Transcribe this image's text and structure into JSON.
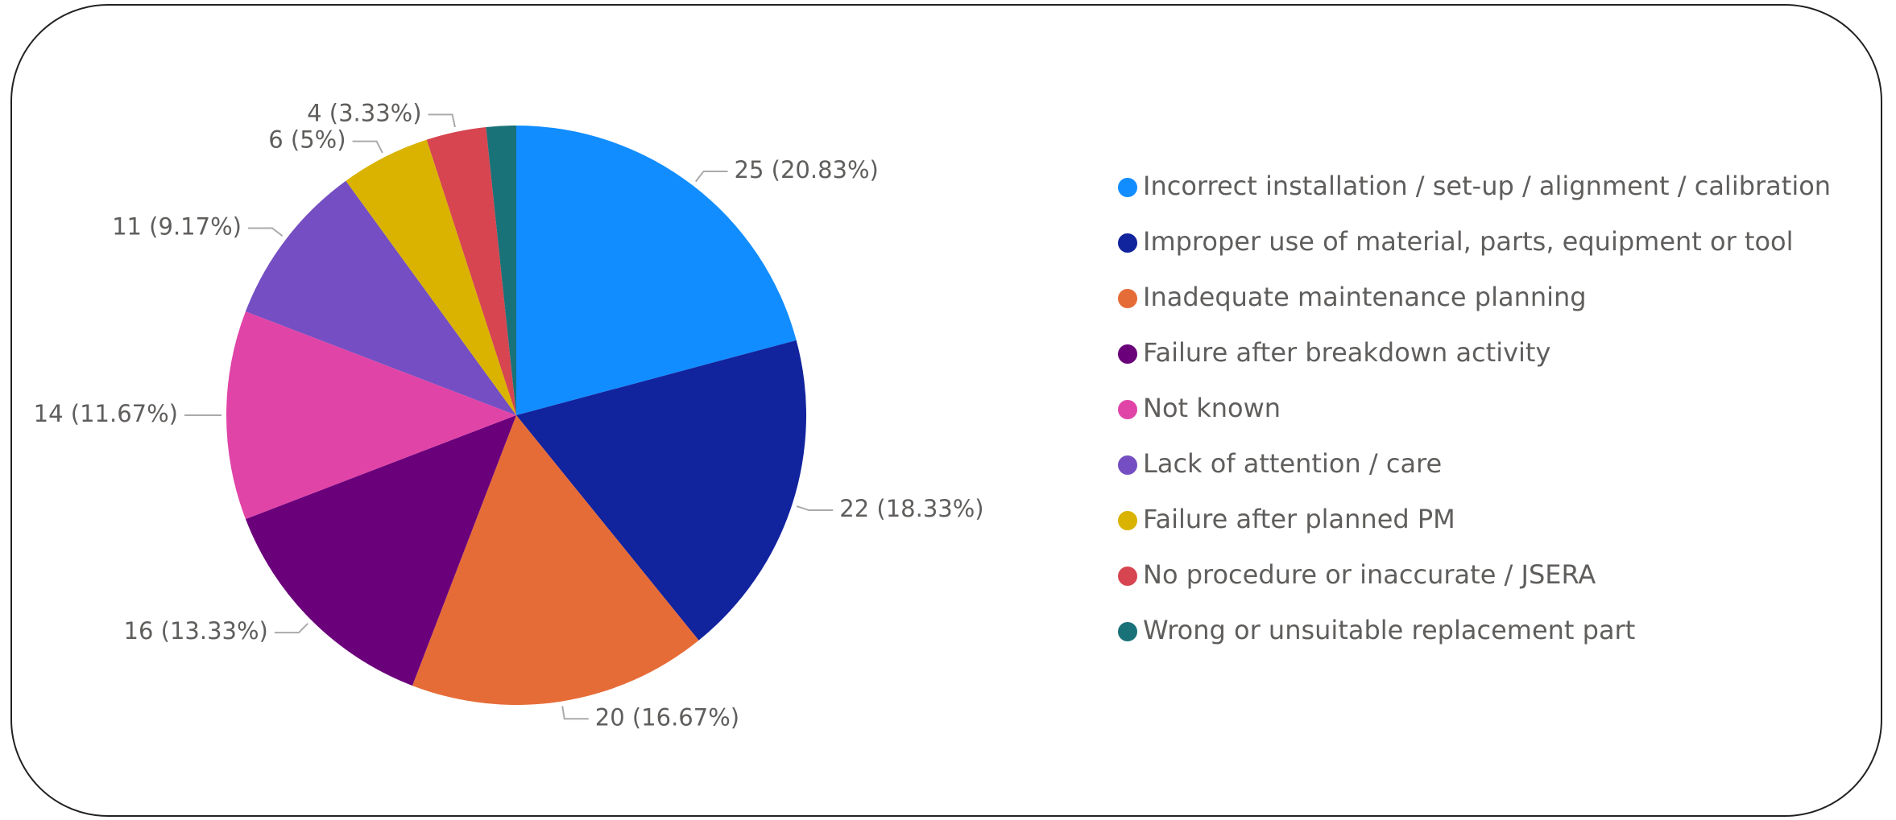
{
  "chart_data": {
    "type": "pie",
    "categories": [
      "Incorrect installation / set-up / alignment / calibration",
      "Improper use of material, parts, equipment or tool",
      "Inadequate maintenance planning",
      "Failure after breakdown activity",
      "Not known",
      "Lack of attention / care",
      "Failure after planned PM",
      "No procedure or inaccurate / JSERA",
      "Wrong or unsuitable replacement part"
    ],
    "values": [
      25,
      22,
      20,
      16,
      14,
      11,
      6,
      4,
      2
    ],
    "value_labels": [
      "25 (20.83%)",
      "22 (18.33%)",
      "20 (16.67%)",
      "16 (13.33%)",
      "14 (11.67%)",
      "11 (9.17%)",
      "6 (5%)",
      "4 (3.33%)",
      null
    ],
    "colors": [
      "#118dff",
      "#12239e",
      "#e66c37",
      "#6b007b",
      "#e044a7",
      "#744ec2",
      "#d9b300",
      "#d64550",
      "#197278"
    ],
    "legend": "right"
  }
}
